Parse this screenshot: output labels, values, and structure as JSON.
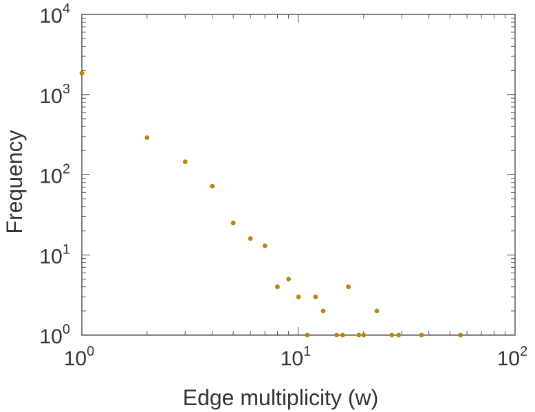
{
  "chart_data": {
    "type": "scatter",
    "title": "",
    "xlabel": "Edge multiplicity (w)",
    "ylabel": "Frequency",
    "xscale": "log",
    "yscale": "log",
    "xlim": [
      1,
      100
    ],
    "ylim": [
      1,
      10000
    ],
    "x_ticks": [
      {
        "base": "10",
        "exp": "0"
      },
      {
        "base": "10",
        "exp": "1"
      },
      {
        "base": "10",
        "exp": "2"
      }
    ],
    "y_ticks": [
      {
        "base": "10",
        "exp": "0"
      },
      {
        "base": "10",
        "exp": "1"
      },
      {
        "base": "10",
        "exp": "2"
      },
      {
        "base": "10",
        "exp": "3"
      },
      {
        "base": "10",
        "exp": "4"
      }
    ],
    "grid": false,
    "legend": "none",
    "marker_color": "#b8860b",
    "series": [
      {
        "x": [
          1,
          2,
          3,
          4,
          5,
          6,
          7,
          8,
          9,
          10,
          11,
          12,
          13,
          15,
          16,
          17,
          19,
          20,
          23,
          27,
          29,
          37,
          56
        ],
        "y": [
          1850,
          290,
          145,
          72,
          25,
          16,
          13,
          4,
          5,
          3,
          1,
          3,
          2,
          1,
          1,
          4,
          1,
          1,
          2,
          1,
          1,
          1,
          1
        ]
      }
    ]
  }
}
